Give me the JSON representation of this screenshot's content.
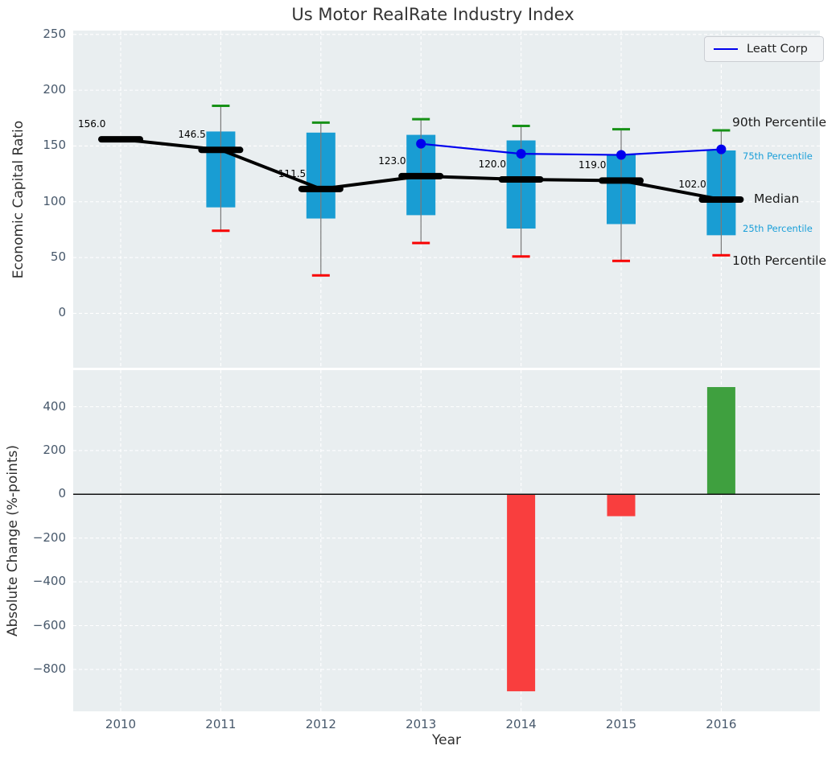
{
  "figure_title": "Us Motor RealRate Industry Index",
  "legend": {
    "label": "Leatt Corp"
  },
  "colors": {
    "plot_bg": "#e9eef0",
    "grid": "#ffffff",
    "box_fill": "#199dd3",
    "cyan_text": "#1a9fd9",
    "median_color": "#000000",
    "p90_cap": "#179117",
    "p10_cap": "#f80000",
    "leatt_line": "#0000ee",
    "bar_negative": "#f93e3e",
    "bar_positive": "#3fa03f",
    "tick_text": "#47586b",
    "whisker": "#7a7a7a",
    "zero_line": "#111111"
  },
  "chart_data": [
    {
      "type": "box",
      "title": "Us Motor RealRate Industry Index",
      "ylabel": "Economic Capital Ratio",
      "ylim": [
        -49,
        253.5
      ],
      "yticks": [
        250,
        200,
        150,
        100,
        50,
        0
      ],
      "grid": true,
      "legend_label": "Leatt Corp",
      "legend_position": "upper right",
      "categories": [
        2010,
        2011,
        2012,
        2013,
        2014,
        2015,
        2016
      ],
      "series": [
        {
          "name": "90th Percentile",
          "values": [
            null,
            186,
            171,
            174,
            168,
            165,
            164
          ]
        },
        {
          "name": "75th Percentile",
          "values": [
            null,
            163,
            162,
            160,
            155,
            142,
            146
          ]
        },
        {
          "name": "Median",
          "values": [
            156,
            146.5,
            111.5,
            123,
            120,
            119,
            102
          ]
        },
        {
          "name": "25th Percentile",
          "values": [
            null,
            95,
            85,
            88,
            76,
            80,
            70
          ]
        },
        {
          "name": "10th Percentile",
          "values": [
            null,
            74,
            34,
            63,
            51,
            47,
            52
          ]
        },
        {
          "name": "Leatt Corp",
          "values": [
            null,
            null,
            null,
            152,
            143,
            142,
            147
          ]
        }
      ],
      "median_labels": [
        "156.0",
        "146.5",
        "111.5",
        "123.0",
        "120.0",
        "119.0",
        "102.0"
      ],
      "right_labels": [
        "90th Percentile",
        "75th Percentile",
        "Median",
        "25th Percentile",
        "10th Percentile"
      ]
    },
    {
      "type": "bar",
      "ylabel": "Absolute Change (%-points)",
      "xlabel": "Year",
      "ylim": [
        -982,
        562
      ],
      "yticks": [
        400,
        200,
        0,
        -200,
        -400,
        -600,
        -800
      ],
      "grid": true,
      "categories": [
        2010,
        2011,
        2012,
        2013,
        2014,
        2015,
        2016
      ],
      "values": [
        null,
        null,
        null,
        null,
        -900,
        -100,
        490
      ]
    }
  ]
}
